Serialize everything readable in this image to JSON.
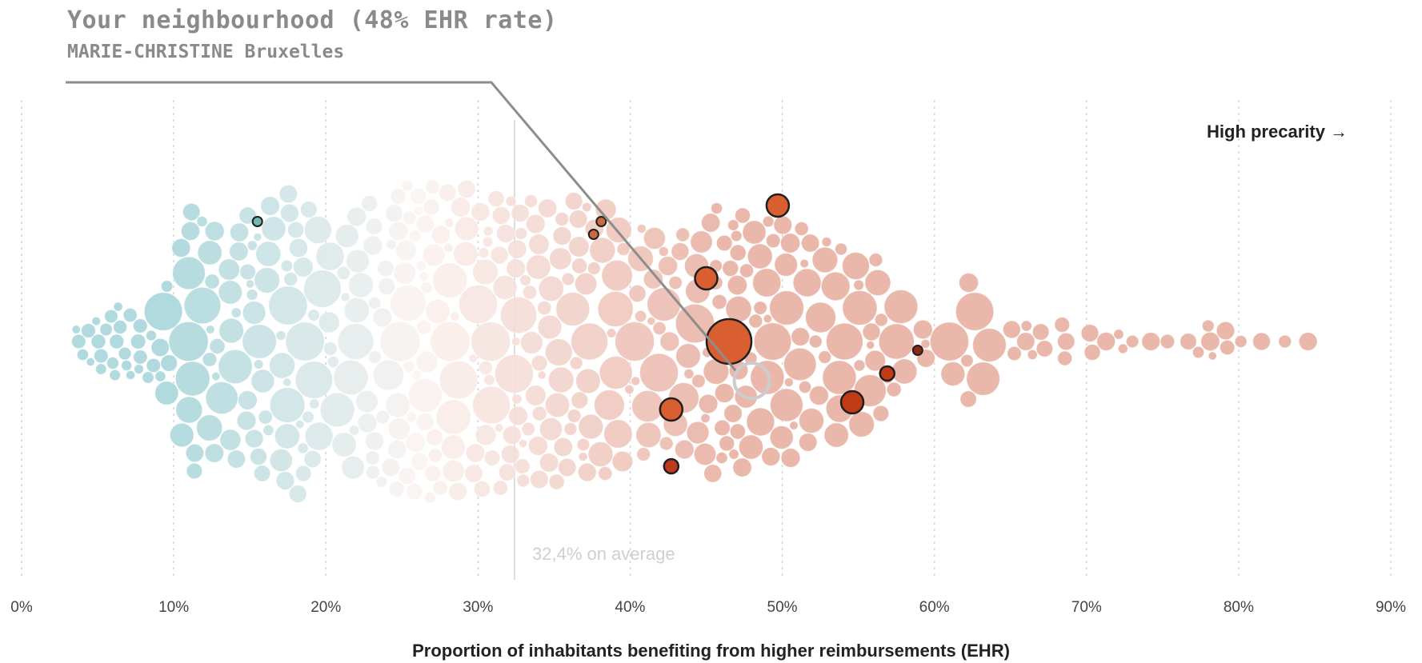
{
  "chart_data": {
    "type": "scatter",
    "subtype": "beeswarm",
    "title": "Your neighbourhood (48% EHR rate)",
    "subtitle": "MARIE-CHRISTINE Bruxelles",
    "xlabel": "Proportion of inhabitants benefiting from higher reimbursements (EHR)",
    "ylabel": "",
    "xlim": [
      0,
      90
    ],
    "x_ticks": [
      "0%",
      "10%",
      "20%",
      "30%",
      "40%",
      "50%",
      "60%",
      "70%",
      "80%",
      "90%"
    ],
    "grid": "vertical dotted",
    "legend": "none",
    "annotation_right": "High precarity →",
    "average": {
      "value": 32.4,
      "label": "32,4% on average"
    },
    "color_low": "#a9d6db",
    "color_mid": "#fbf4f2",
    "color_high": "#e8b0a2",
    "highlight_color": "#d95f30",
    "selected": {
      "x": 48,
      "label": "Your neighbourhood (48% EHR rate)"
    },
    "highlighted_points": [
      {
        "x": 46.5,
        "size": "large"
      },
      {
        "x": 49.7,
        "size": "medium"
      },
      {
        "x": 45.0,
        "size": "medium"
      },
      {
        "x": 42.7,
        "size": "medium"
      },
      {
        "x": 42.7,
        "size": "small"
      },
      {
        "x": 54.6,
        "size": "medium"
      },
      {
        "x": 56.9,
        "size": "small"
      },
      {
        "x": 58.9,
        "size": "tiny"
      },
      {
        "x": 38.1,
        "size": "tiny"
      },
      {
        "x": 37.6,
        "size": "tiny"
      },
      {
        "x": 15.5,
        "size": "tiny"
      }
    ]
  }
}
